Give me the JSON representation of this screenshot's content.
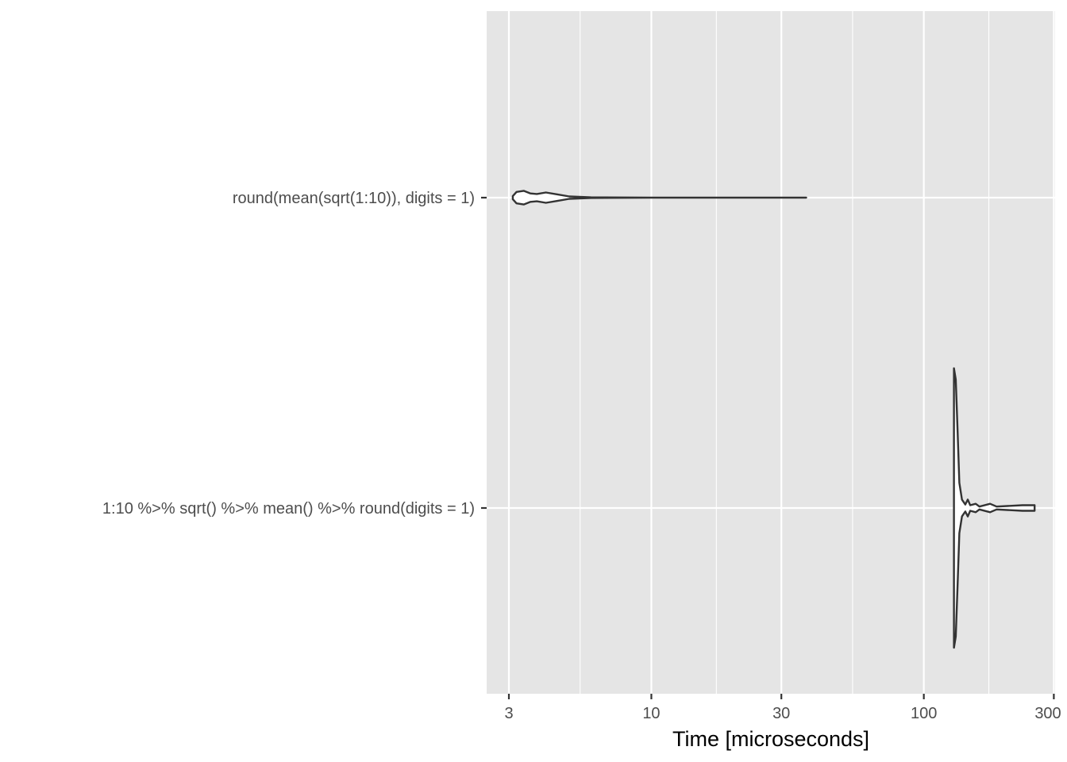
{
  "chart_data": {
    "type": "violin",
    "orientation": "horizontal",
    "xlabel": "Time [microseconds]",
    "ylabel": "",
    "title": "",
    "x_scale": "log10",
    "xlim": [
      2.8,
      305
    ],
    "x_ticks": [
      3,
      10,
      30,
      100,
      300
    ],
    "x_tick_labels": [
      "3",
      "10",
      "30",
      "100",
      "300"
    ],
    "grid": true,
    "categories": [
      "round(mean(sqrt(1:10)), digits = 1)",
      "1:10 %>% sqrt() %>% mean() %>% round(digits = 1)"
    ],
    "series": [
      {
        "category": "round(mean(sqrt(1:10)), digits = 1)",
        "min": 3.1,
        "max": 37,
        "density_profile": [
          [
            3.1,
            0.1
          ],
          [
            3.2,
            0.38
          ],
          [
            3.4,
            0.45
          ],
          [
            3.6,
            0.28
          ],
          [
            3.8,
            0.24
          ],
          [
            4.1,
            0.34
          ],
          [
            4.5,
            0.22
          ],
          [
            5.0,
            0.08
          ],
          [
            6.0,
            0.02
          ],
          [
            10,
            0.003
          ],
          [
            37,
            0.0
          ]
        ]
      },
      {
        "category": "1:10 %>% sqrt() %>% mean() %>% round(digits = 1)",
        "min": 129,
        "max": 255,
        "density_profile": [
          [
            129,
            1.0
          ],
          [
            131,
            0.92
          ],
          [
            133,
            0.55
          ],
          [
            135,
            0.18
          ],
          [
            138,
            0.06
          ],
          [
            142,
            0.025
          ],
          [
            145,
            0.06
          ],
          [
            148,
            0.02
          ],
          [
            155,
            0.03
          ],
          [
            160,
            0.01
          ],
          [
            175,
            0.03
          ],
          [
            185,
            0.01
          ],
          [
            230,
            0.02
          ],
          [
            245,
            0.02
          ],
          [
            255,
            0.02
          ]
        ]
      }
    ]
  }
}
